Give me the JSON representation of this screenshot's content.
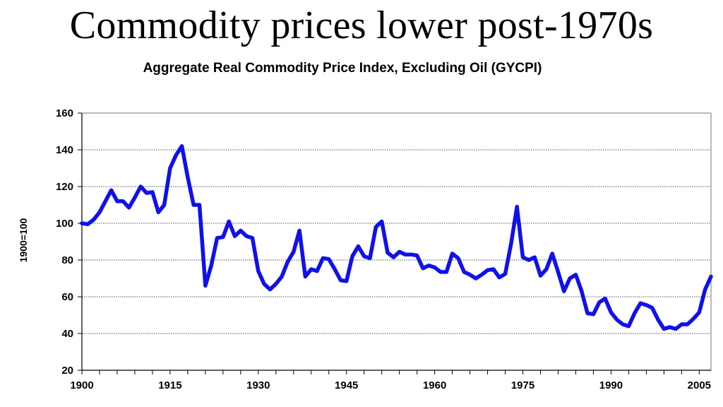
{
  "slide_title": "Commodity prices lower post-1970s",
  "chart_data": {
    "type": "line",
    "title": "Aggregate Real Commodity Price Index, Excluding Oil (GYCPI)",
    "xlabel": "",
    "ylabel": "1900=100",
    "xlim": [
      1900,
      2007
    ],
    "ylim": [
      20,
      160
    ],
    "y_ticks": [
      20,
      40,
      60,
      80,
      100,
      120,
      140,
      160
    ],
    "x_ticks": [
      1900,
      1915,
      1930,
      1945,
      1960,
      1975,
      1990,
      2005
    ],
    "grid": true,
    "series_color": "#1010ee",
    "series": [
      {
        "name": "GYCPI",
        "x": [
          1900,
          1901,
          1902,
          1903,
          1904,
          1905,
          1906,
          1907,
          1908,
          1909,
          1910,
          1911,
          1912,
          1913,
          1914,
          1915,
          1916,
          1917,
          1918,
          1919,
          1920,
          1921,
          1922,
          1923,
          1924,
          1925,
          1926,
          1927,
          1928,
          1929,
          1930,
          1931,
          1932,
          1933,
          1934,
          1935,
          1936,
          1937,
          1938,
          1939,
          1940,
          1941,
          1942,
          1943,
          1944,
          1945,
          1946,
          1947,
          1948,
          1949,
          1950,
          1951,
          1952,
          1953,
          1954,
          1955,
          1956,
          1957,
          1958,
          1959,
          1960,
          1961,
          1962,
          1963,
          1964,
          1965,
          1966,
          1967,
          1968,
          1969,
          1970,
          1971,
          1972,
          1973,
          1974,
          1975,
          1976,
          1977,
          1978,
          1979,
          1980,
          1981,
          1982,
          1983,
          1984,
          1985,
          1986,
          1987,
          1988,
          1989,
          1990,
          1991,
          1992,
          1993,
          1994,
          1995,
          1996,
          1997,
          1998,
          1999,
          2000,
          2001,
          2002,
          2003,
          2004,
          2005,
          2006,
          2007
        ],
        "values": [
          100,
          99.5,
          102,
          106,
          112,
          118,
          112,
          112,
          108.5,
          114,
          120,
          116.5,
          117,
          106,
          110,
          130,
          137,
          142,
          125,
          110,
          110,
          66,
          77,
          92,
          92.5,
          101,
          93,
          96,
          93,
          92,
          74,
          67,
          64,
          67,
          71,
          79,
          84.5,
          96,
          71,
          75,
          74,
          81,
          80.5,
          75,
          69,
          68.5,
          82,
          87.5,
          82,
          81,
          98,
          101,
          84,
          81.5,
          84.5,
          83,
          83,
          82.5,
          75.5,
          77,
          76,
          73.5,
          73.5,
          83.5,
          81,
          73.5,
          72,
          70,
          72,
          74.5,
          75,
          70.5,
          72.5,
          89,
          109,
          81.5,
          80,
          81.5,
          71.5,
          75,
          83.5,
          73.5,
          63,
          70,
          72,
          63,
          51,
          50.5,
          57,
          59,
          51.5,
          47.5,
          45,
          44,
          51,
          56.5,
          55.5,
          54,
          47.5,
          42.5,
          43.5,
          42.5,
          45,
          45,
          48,
          51.5,
          64,
          71
        ]
      }
    ]
  }
}
